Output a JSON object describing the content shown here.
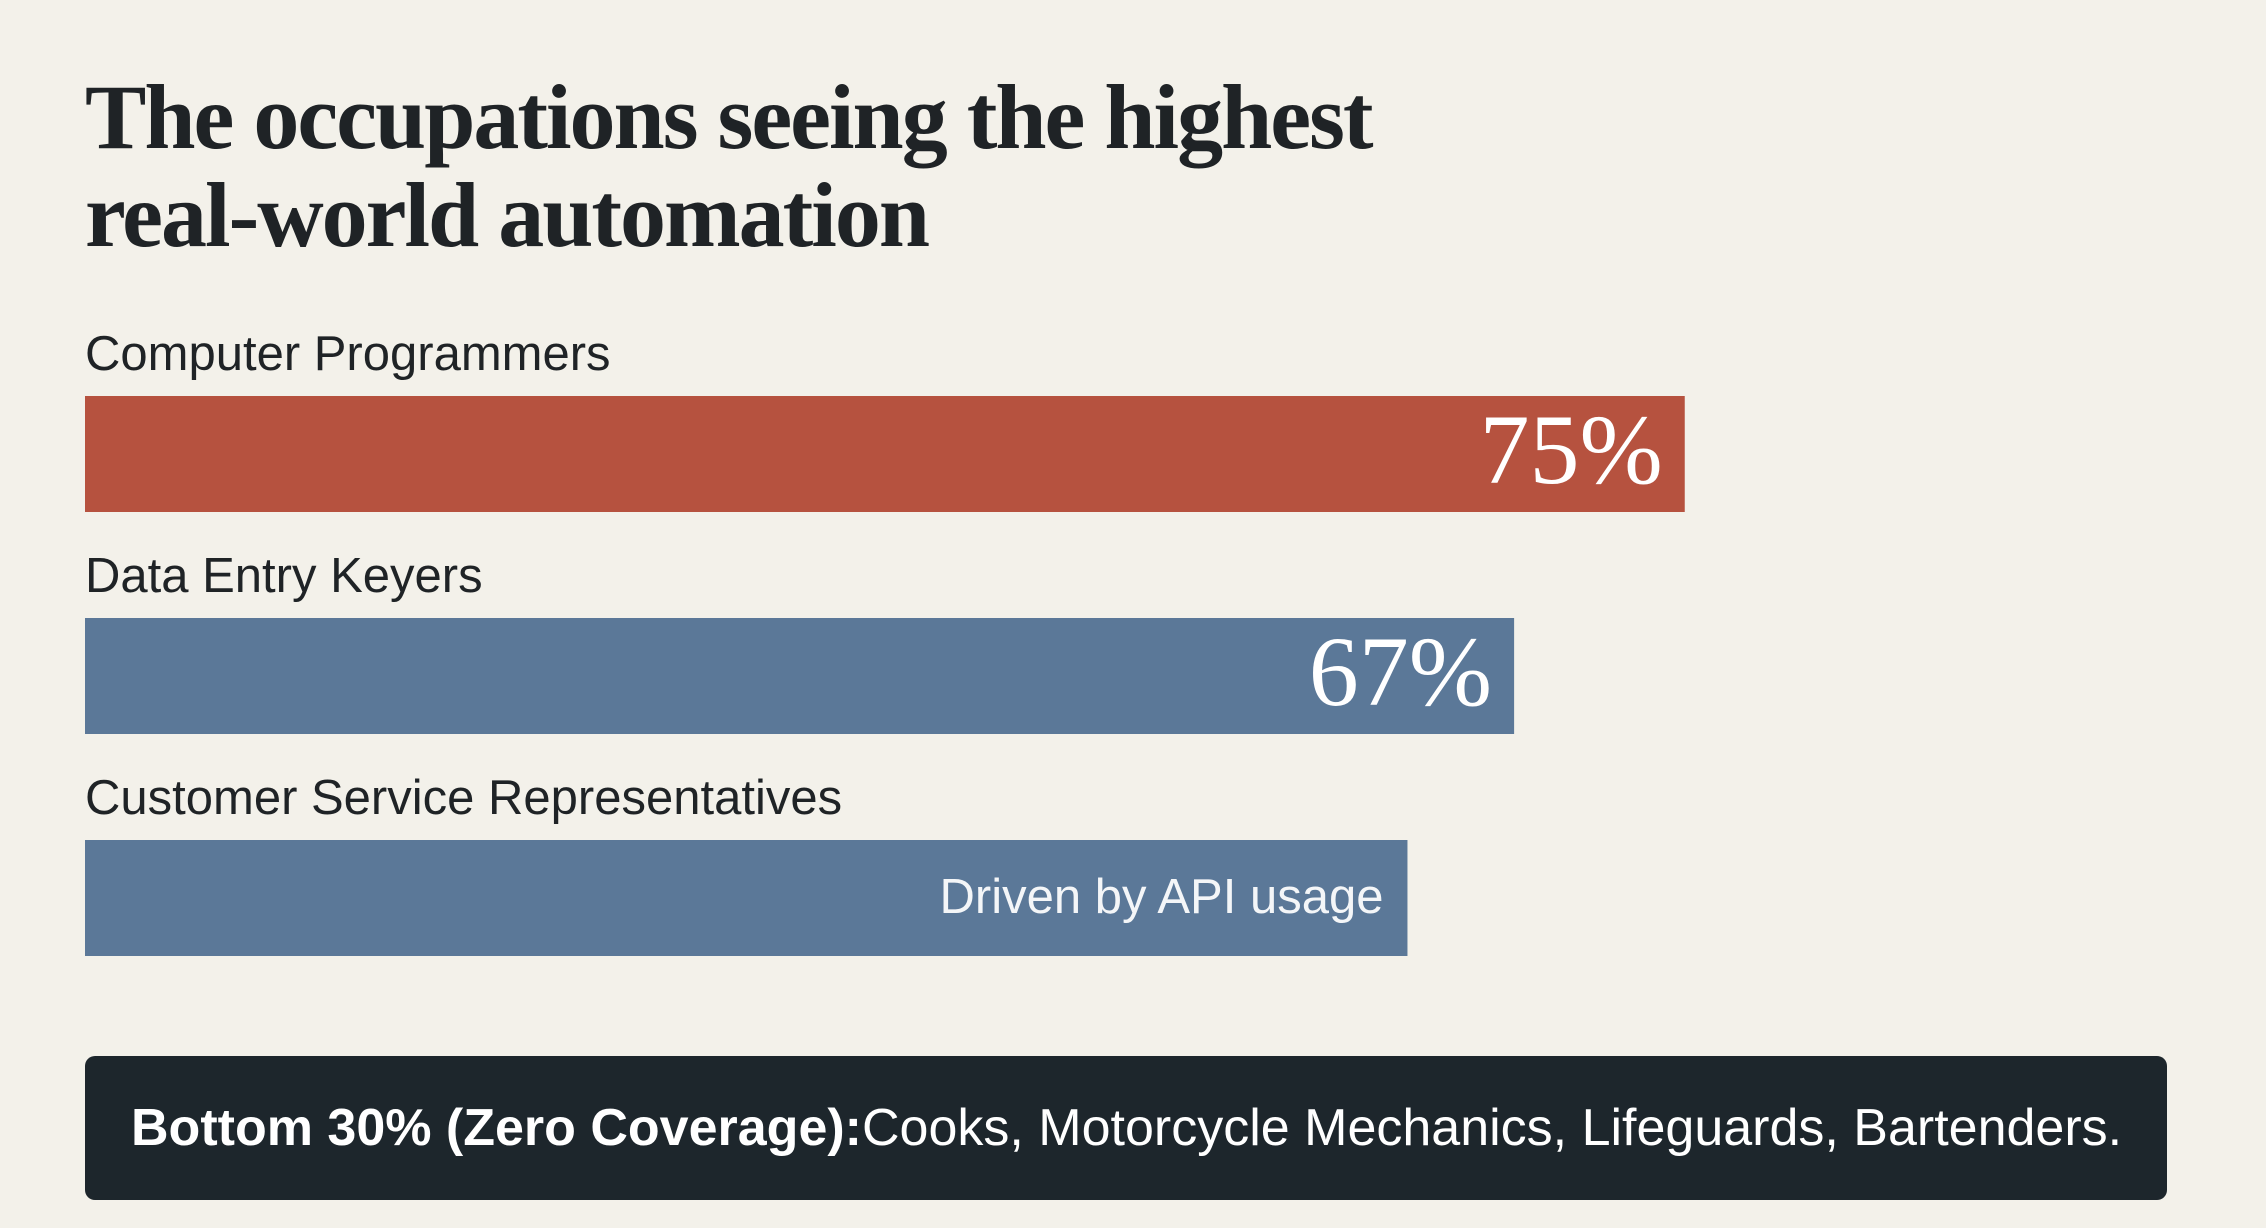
{
  "title_lines": [
    "The occupations seeing the highest",
    "real-world automation"
  ],
  "chart_data": {
    "type": "bar",
    "orientation": "horizontal",
    "title": "The occupations seeing the highest real-world automation",
    "categories": [
      "Computer Programmers",
      "Data Entry Keyers",
      "Customer Service Representatives"
    ],
    "values": [
      75,
      67,
      62
    ],
    "bar_labels": [
      "75%",
      "67%",
      "Driven by API usage"
    ],
    "colors": [
      "#b6523f",
      "#5b7898",
      "#5b7898"
    ],
    "xlim": [
      0,
      100
    ],
    "xlabel": "",
    "ylabel": "",
    "grid": false
  },
  "footer": {
    "bold_text": "Bottom 30% (Zero Coverage):",
    "text": " Cooks, Motorcycle Mechanics, Lifeguards, Bartenders.",
    "background": "#1d262c"
  },
  "colors": {
    "background": "#f3f1ea",
    "text": "#1f2326",
    "accent": "#b6523f",
    "secondary": "#5b7898"
  }
}
